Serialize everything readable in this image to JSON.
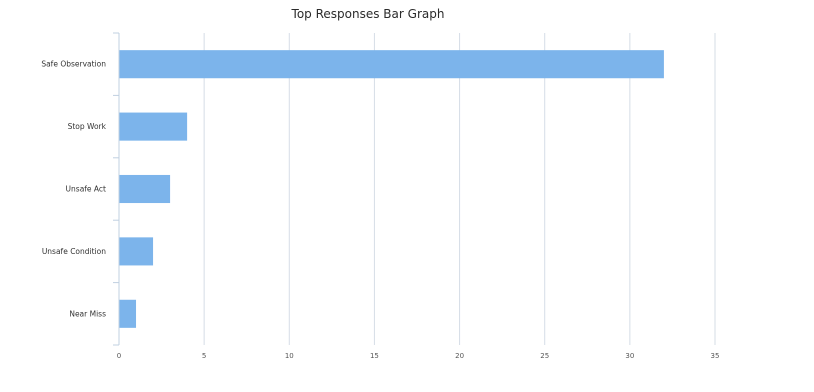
{
  "chart_data": {
    "type": "bar",
    "orientation": "horizontal",
    "title": "Top Responses Bar Graph",
    "xlabel": "",
    "ylabel": "",
    "categories": [
      "Safe Observation",
      "Stop Work",
      "Unsafe Act",
      "Unsafe Condition",
      "Near Miss"
    ],
    "values": [
      32,
      4,
      3,
      2,
      1
    ],
    "xlim": [
      0,
      35
    ],
    "xticks": [
      0,
      5,
      10,
      15,
      20,
      25,
      30,
      35
    ],
    "grid": true,
    "legend": "none",
    "bar_color": "#7cb4eb",
    "grid_color": "#d6dde6",
    "axis_color": "#c0d0e0"
  }
}
